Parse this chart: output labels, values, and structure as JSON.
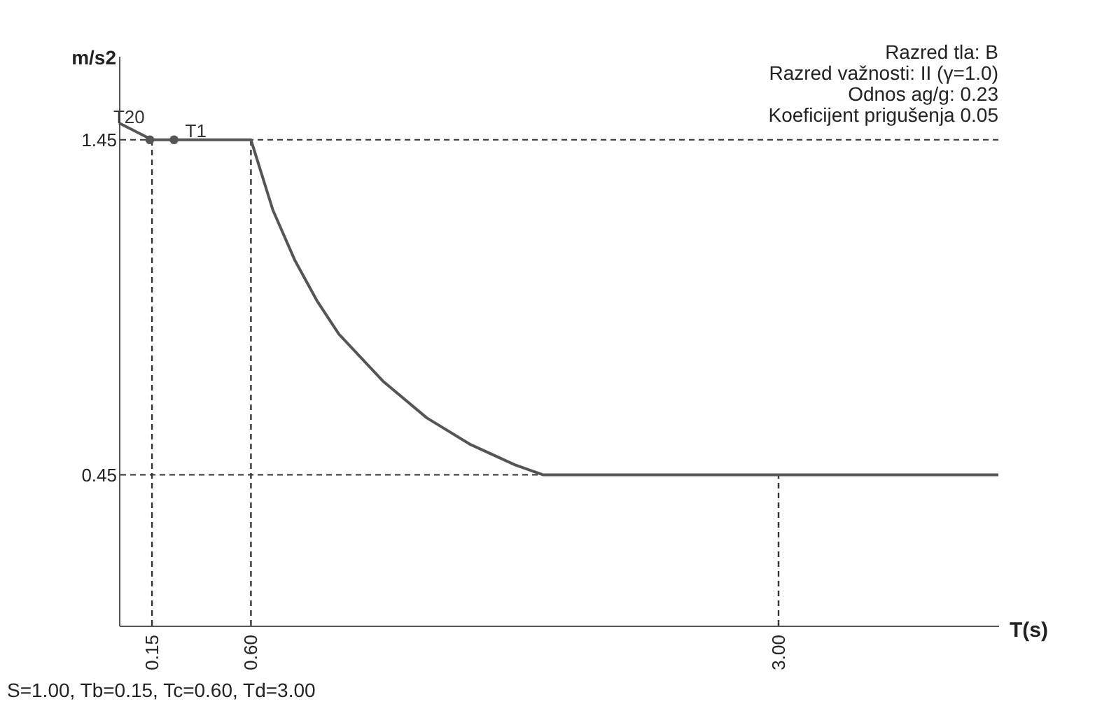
{
  "chart_data": {
    "type": "line",
    "xlabel": "T(s)",
    "ylabel": "m/s2",
    "xlim": [
      0,
      4.0
    ],
    "ylim": [
      0,
      1.7
    ],
    "xticks": [
      {
        "value": 0.15,
        "label": "0.15"
      },
      {
        "value": 0.6,
        "label": "0.60"
      },
      {
        "value": 3.0,
        "label": "3.00"
      }
    ],
    "yticks": [
      1.45,
      0.45
    ],
    "grid": false,
    "series": [
      {
        "color": "#555555",
        "line_style": "solid",
        "marker": "none",
        "x": [
          0,
          0.15,
          0.6,
          0.7,
          0.8,
          0.9,
          1.0,
          1.2,
          1.4,
          1.6,
          1.8,
          1.93,
          4.0
        ],
        "values": [
          1.5,
          1.45,
          1.45,
          1.24,
          1.09,
          0.97,
          0.87,
          0.73,
          0.62,
          0.54,
          0.48,
          0.45,
          0.45
        ]
      },
      {
        "type": "scatter",
        "color": "#555555",
        "marker": "circle",
        "x": [
          0.14,
          0.25
        ],
        "values": [
          1.45,
          1.45
        ]
      }
    ],
    "ref_lines": [
      {
        "axis": "x",
        "value": 0.15,
        "line_style": "dashed",
        "color": "#333333"
      },
      {
        "axis": "x",
        "value": 0.6,
        "line_style": "dashed",
        "color": "#333333"
      },
      {
        "axis": "x",
        "value": 3.0,
        "line_style": "dashed",
        "color": "#333333"
      },
      {
        "axis": "y",
        "value": 1.45,
        "line_style": "dashed",
        "color": "#333333"
      },
      {
        "axis": "y",
        "value": 0.45,
        "line_style": "dashed",
        "color": "#333333"
      }
    ],
    "annotations": [
      "Razred tla: B",
      "Razred važnosti: II (γ=1.0)",
      "Odnos ag/g: 0.23",
      "Koeficijent prigušenja 0.05",
      "S=1.00, Tb=0.15, Tc=0.60, Td=3.00",
      {
        "text": "T20",
        "x": 0.14,
        "y": 1.45
      },
      {
        "text": "T1",
        "x": 0.25,
        "y": 1.45
      }
    ]
  }
}
